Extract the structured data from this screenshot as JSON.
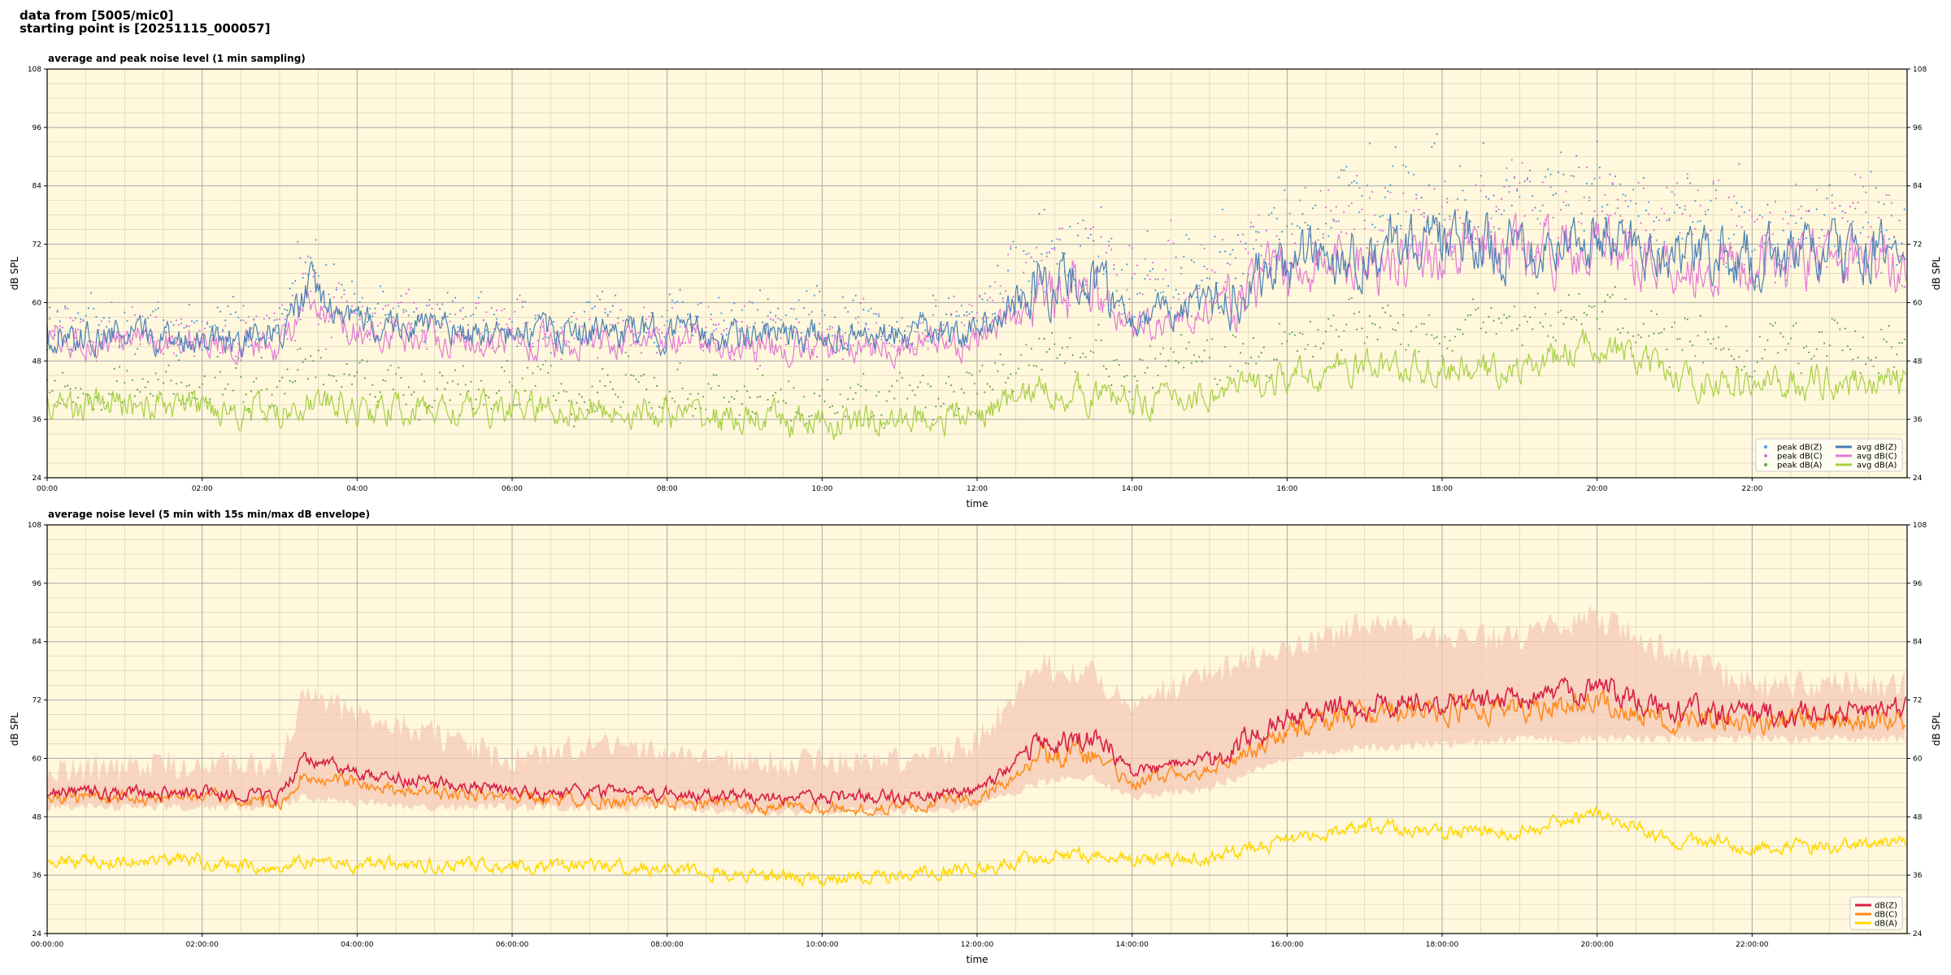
{
  "header": {
    "line1": "data from [5005/mic0]",
    "line2": "starting point is [20251115_000057]"
  },
  "colors": {
    "plot_bg": "#fff8dc",
    "grid_major": "#a8a8a8",
    "grid_minor": "#d9d2b7",
    "z_peak": "#4e9bd8",
    "z_avg": "#4a7fb5",
    "c_peak": "#e06ddc",
    "c_avg": "#e27ad6",
    "a_peak": "#62a74a",
    "a_avg": "#a6cf44",
    "dbz5": "#d81d45",
    "dbc5": "#ff8b1a",
    "dba5": "#ffd700",
    "envelope": "#f5c9b8"
  },
  "chart_data": [
    {
      "type": "line",
      "title": "average and peak noise level (1 min sampling)",
      "xlabel": "time",
      "ylabel": "dB SPL",
      "xlim_hours": [
        0,
        24
      ],
      "ylim": [
        24,
        108
      ],
      "yticks": [
        24,
        36,
        48,
        60,
        72,
        84,
        96,
        108
      ],
      "xticks": [
        "00:00",
        "02:00",
        "04:00",
        "06:00",
        "08:00",
        "10:00",
        "12:00",
        "14:00",
        "16:00",
        "18:00",
        "20:00",
        "22:00"
      ],
      "grid": true,
      "legend_position": "lower-right",
      "legend_entries": [
        "peak dB(Z)",
        "peak dB(C)",
        "peak dB(A)",
        "avg dB(Z)",
        "avg dB(C)",
        "avg dB(A)"
      ],
      "x_hours": [
        0,
        1,
        2,
        3,
        3.3,
        4,
        5,
        6,
        7,
        8,
        9,
        10,
        11,
        12,
        12.8,
        13.5,
        14,
        15,
        16,
        17,
        18,
        19,
        20,
        21,
        22,
        23,
        24
      ],
      "series": [
        {
          "name": "avg dB(Z)",
          "values": [
            53,
            53,
            53,
            53,
            62,
            56,
            55,
            53,
            54,
            54,
            53,
            53,
            53,
            54,
            64,
            65,
            57,
            60,
            68,
            71,
            72,
            72,
            74,
            70,
            69,
            70,
            70
          ]
        },
        {
          "name": "avg dB(C)",
          "values": [
            52,
            52,
            52,
            51,
            59,
            54,
            53,
            52,
            52,
            52,
            51,
            51,
            51,
            52,
            61,
            62,
            55,
            58,
            67,
            69,
            70,
            70,
            72,
            68,
            68,
            68,
            68
          ]
        },
        {
          "name": "avg dB(A)",
          "values": [
            39,
            39,
            39,
            37,
            40,
            38,
            38,
            38,
            38,
            37,
            36,
            35,
            36,
            37,
            42,
            41,
            40,
            41,
            44,
            47,
            46,
            46,
            52,
            44,
            43,
            44,
            44
          ]
        },
        {
          "name": "peak dB(Z)",
          "values": [
            55,
            55,
            55,
            55,
            66,
            60,
            58,
            55,
            56,
            57,
            56,
            56,
            56,
            58,
            70,
            72,
            64,
            68,
            76,
            80,
            80,
            80,
            82,
            78,
            76,
            76,
            76
          ]
        },
        {
          "name": "peak dB(C)",
          "values": [
            54,
            54,
            54,
            54,
            64,
            58,
            56,
            54,
            55,
            55,
            54,
            54,
            54,
            56,
            68,
            70,
            62,
            66,
            74,
            78,
            78,
            78,
            80,
            76,
            74,
            74,
            74
          ]
        },
        {
          "name": "peak dB(A)",
          "values": [
            43,
            43,
            43,
            41,
            45,
            43,
            43,
            42,
            42,
            41,
            40,
            39,
            40,
            42,
            48,
            48,
            46,
            48,
            52,
            56,
            55,
            55,
            60,
            52,
            50,
            51,
            51
          ]
        }
      ]
    },
    {
      "type": "line",
      "title": "average noise level (5 min with 15s min/max dB envelope)",
      "xlabel": "time",
      "ylabel": "dB SPL",
      "xlim_hours": [
        0,
        24
      ],
      "ylim": [
        24,
        108
      ],
      "yticks": [
        24,
        36,
        48,
        60,
        72,
        84,
        96,
        108
      ],
      "xticks": [
        "00:00:00",
        "02:00:00",
        "04:00:00",
        "06:00:00",
        "08:00:00",
        "10:00:00",
        "12:00:00",
        "14:00:00",
        "16:00:00",
        "18:00:00",
        "20:00:00",
        "22:00:00"
      ],
      "grid": true,
      "legend_position": "lower-right",
      "legend_entries": [
        "dB(Z)",
        "dB(C)",
        "dB(A)"
      ],
      "x_hours": [
        0,
        1,
        2,
        3,
        3.3,
        4,
        5,
        6,
        7,
        8,
        9,
        10,
        11,
        12,
        12.8,
        13.5,
        14,
        15,
        16,
        17,
        18,
        19,
        20,
        21,
        22,
        23,
        24
      ],
      "series": [
        {
          "name": "dB(Z)",
          "values": [
            53,
            53,
            53,
            52,
            60,
            57,
            55,
            53,
            53,
            53,
            52,
            52,
            52,
            53,
            63,
            64,
            57,
            60,
            68,
            71,
            72,
            72,
            74,
            70,
            69,
            69,
            70
          ]
        },
        {
          "name": "dB(C)",
          "values": [
            52,
            52,
            52,
            51,
            57,
            55,
            53,
            52,
            51,
            51,
            50,
            50,
            50,
            52,
            60,
            61,
            55,
            58,
            66,
            69,
            70,
            70,
            72,
            68,
            68,
            68,
            68
          ]
        },
        {
          "name": "dB(A)",
          "values": [
            39,
            39,
            39,
            37,
            39,
            38,
            38,
            38,
            38,
            37,
            36,
            35,
            36,
            37,
            40,
            40,
            39,
            40,
            43,
            46,
            45,
            45,
            49,
            43,
            42,
            42,
            43
          ]
        },
        {
          "name": "envelope-min",
          "values": [
            50,
            50,
            50,
            50,
            52,
            51,
            50,
            50,
            50,
            50,
            49,
            49,
            49,
            50,
            55,
            56,
            52,
            54,
            60,
            62,
            63,
            64,
            64,
            64,
            64,
            64,
            64
          ]
        },
        {
          "name": "envelope-max",
          "values": [
            57,
            57,
            58,
            57,
            72,
            68,
            64,
            58,
            62,
            60,
            58,
            58,
            58,
            62,
            78,
            76,
            70,
            76,
            82,
            86,
            84,
            84,
            88,
            80,
            74,
            74,
            74
          ]
        }
      ]
    }
  ]
}
